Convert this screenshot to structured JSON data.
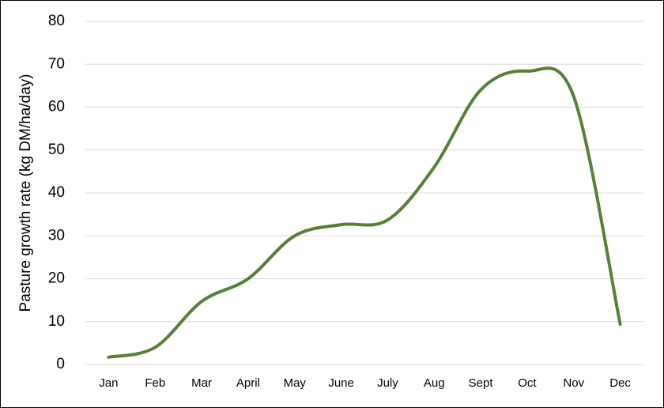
{
  "chart_data": {
    "type": "line",
    "ylabel": "Pasture growth rate (kg DM/ha/day)",
    "categories": [
      "Jan",
      "Feb",
      "Mar",
      "April",
      "May",
      "June",
      "July",
      "Aug",
      "Sept",
      "Oct",
      "Nov",
      "Dec"
    ],
    "series": [
      {
        "name": "Pasture growth rate",
        "color": "#548235",
        "values": [
          1.7,
          4,
          14.7,
          20,
          30,
          32.6,
          33.7,
          46,
          64,
          68.4,
          62.5,
          9.4
        ]
      }
    ],
    "ylim": [
      0,
      80
    ],
    "yticks": [
      0,
      10,
      20,
      30,
      40,
      50,
      60,
      70,
      80
    ],
    "grid": true,
    "smooth": true
  }
}
